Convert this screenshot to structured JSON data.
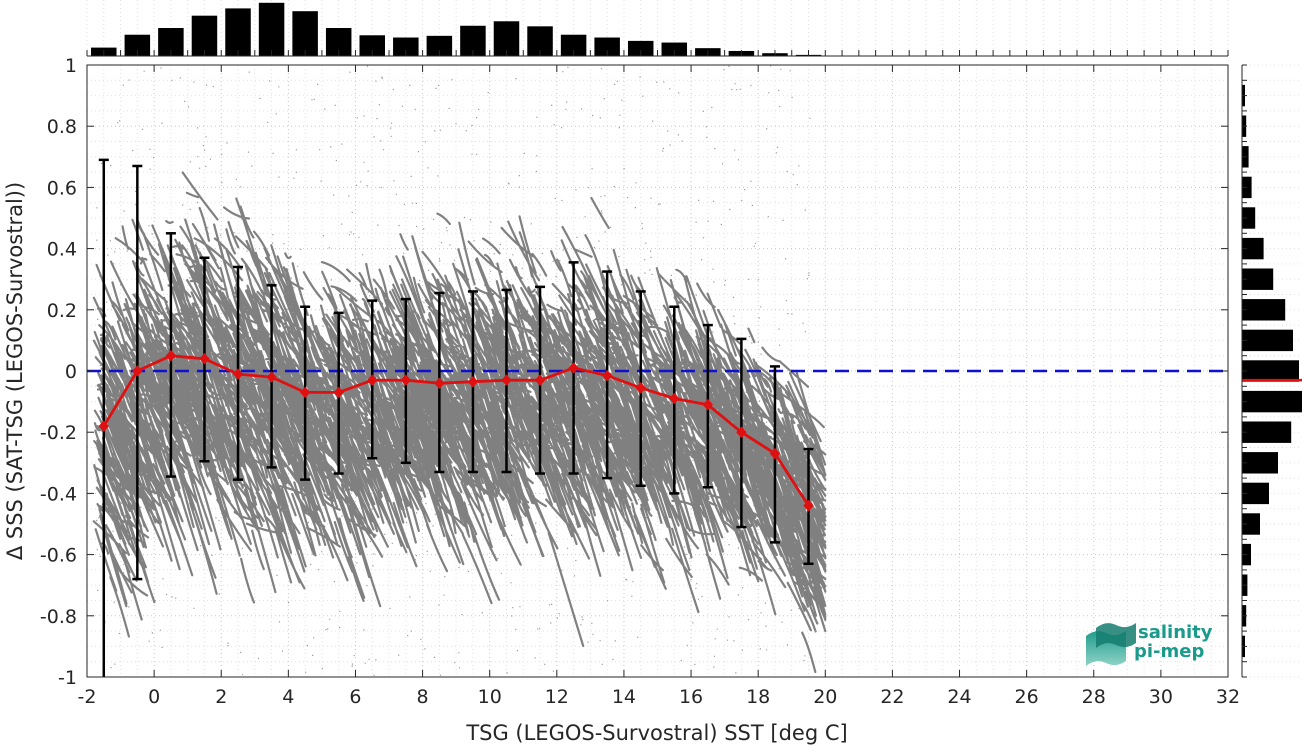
{
  "chart_data": {
    "type": "scatter",
    "xlabel": "TSG (LEGOS-Survostral) SST [deg C]",
    "ylabel": "Δ SSS (SAT-TSG (LEGOS-Survostral))",
    "xlim": [
      -2,
      32
    ],
    "ylim": [
      -1,
      1
    ],
    "xticks": [
      "-2",
      "0",
      "2",
      "4",
      "6",
      "8",
      "10",
      "12",
      "14",
      "16",
      "18",
      "20",
      "22",
      "24",
      "26",
      "28",
      "30",
      "32"
    ],
    "yticks": [
      "-1",
      "-0.8",
      "-0.6",
      "-0.4",
      "-0.2",
      "0",
      "0.2",
      "0.4",
      "0.6",
      "0.8",
      "1"
    ],
    "grid": "dotted",
    "reference_line": {
      "y": 0,
      "color": "#1010d0",
      "style": "dashed"
    },
    "binned_series": {
      "x": [
        -1.5,
        -0.5,
        0.5,
        1.5,
        2.5,
        3.5,
        4.5,
        5.5,
        6.5,
        7.5,
        8.5,
        9.5,
        10.5,
        11.5,
        12.5,
        13.5,
        14.5,
        15.5,
        16.5,
        17.5,
        18.5,
        19.5
      ],
      "mean": [
        -0.18,
        0.0,
        0.05,
        0.04,
        -0.01,
        -0.02,
        -0.07,
        -0.07,
        -0.03,
        -0.03,
        -0.04,
        -0.035,
        -0.03,
        -0.03,
        0.01,
        -0.015,
        -0.055,
        -0.09,
        -0.11,
        -0.2,
        -0.27,
        -0.44
      ],
      "upper": [
        0.69,
        0.67,
        0.45,
        0.37,
        0.34,
        0.28,
        0.21,
        0.19,
        0.23,
        0.235,
        0.255,
        0.26,
        0.265,
        0.275,
        0.355,
        0.325,
        0.26,
        0.21,
        0.15,
        0.105,
        0.015,
        -0.255
      ],
      "lower": [
        -1.0,
        -0.68,
        -0.345,
        -0.295,
        -0.355,
        -0.315,
        -0.355,
        -0.335,
        -0.285,
        -0.3,
        -0.33,
        -0.33,
        -0.33,
        -0.335,
        -0.335,
        -0.35,
        -0.375,
        -0.4,
        -0.38,
        -0.51,
        -0.56,
        -0.63
      ],
      "color": "#e01010"
    },
    "top_histogram": {
      "bin_centers": [
        -1.5,
        -0.5,
        0.5,
        1.5,
        2.5,
        3.5,
        4.5,
        5.5,
        6.5,
        7.5,
        8.5,
        9.5,
        10.5,
        11.5,
        12.5,
        13.5,
        14.5,
        15.5,
        16.5,
        17.5,
        18.5,
        19.5
      ],
      "counts": [
        0.15,
        0.38,
        0.5,
        0.72,
        0.85,
        0.95,
        0.8,
        0.5,
        0.37,
        0.33,
        0.36,
        0.54,
        0.62,
        0.53,
        0.38,
        0.33,
        0.27,
        0.24,
        0.14,
        0.09,
        0.05,
        0.02
      ],
      "color": "#000000"
    },
    "right_histogram": {
      "bin_centers": [
        -0.9,
        -0.8,
        -0.7,
        -0.6,
        -0.5,
        -0.4,
        -0.3,
        -0.2,
        -0.1,
        0.0,
        0.1,
        0.2,
        0.3,
        0.4,
        0.5,
        0.6,
        0.7,
        0.8,
        0.9
      ],
      "counts": [
        0.05,
        0.07,
        0.09,
        0.15,
        0.3,
        0.45,
        0.6,
        0.82,
        1.0,
        0.95,
        0.85,
        0.72,
        0.52,
        0.36,
        0.22,
        0.16,
        0.11,
        0.07,
        0.05
      ],
      "median_line": {
        "y": -0.03,
        "color": "#e01010"
      },
      "color": "#000000"
    },
    "scatter": {
      "color": "#808080",
      "x_range": [
        -1.8,
        19.7
      ],
      "density": "high"
    }
  },
  "logo": {
    "line1": "salinity",
    "line2": "pi-mep",
    "color": "#1a9a8a"
  }
}
